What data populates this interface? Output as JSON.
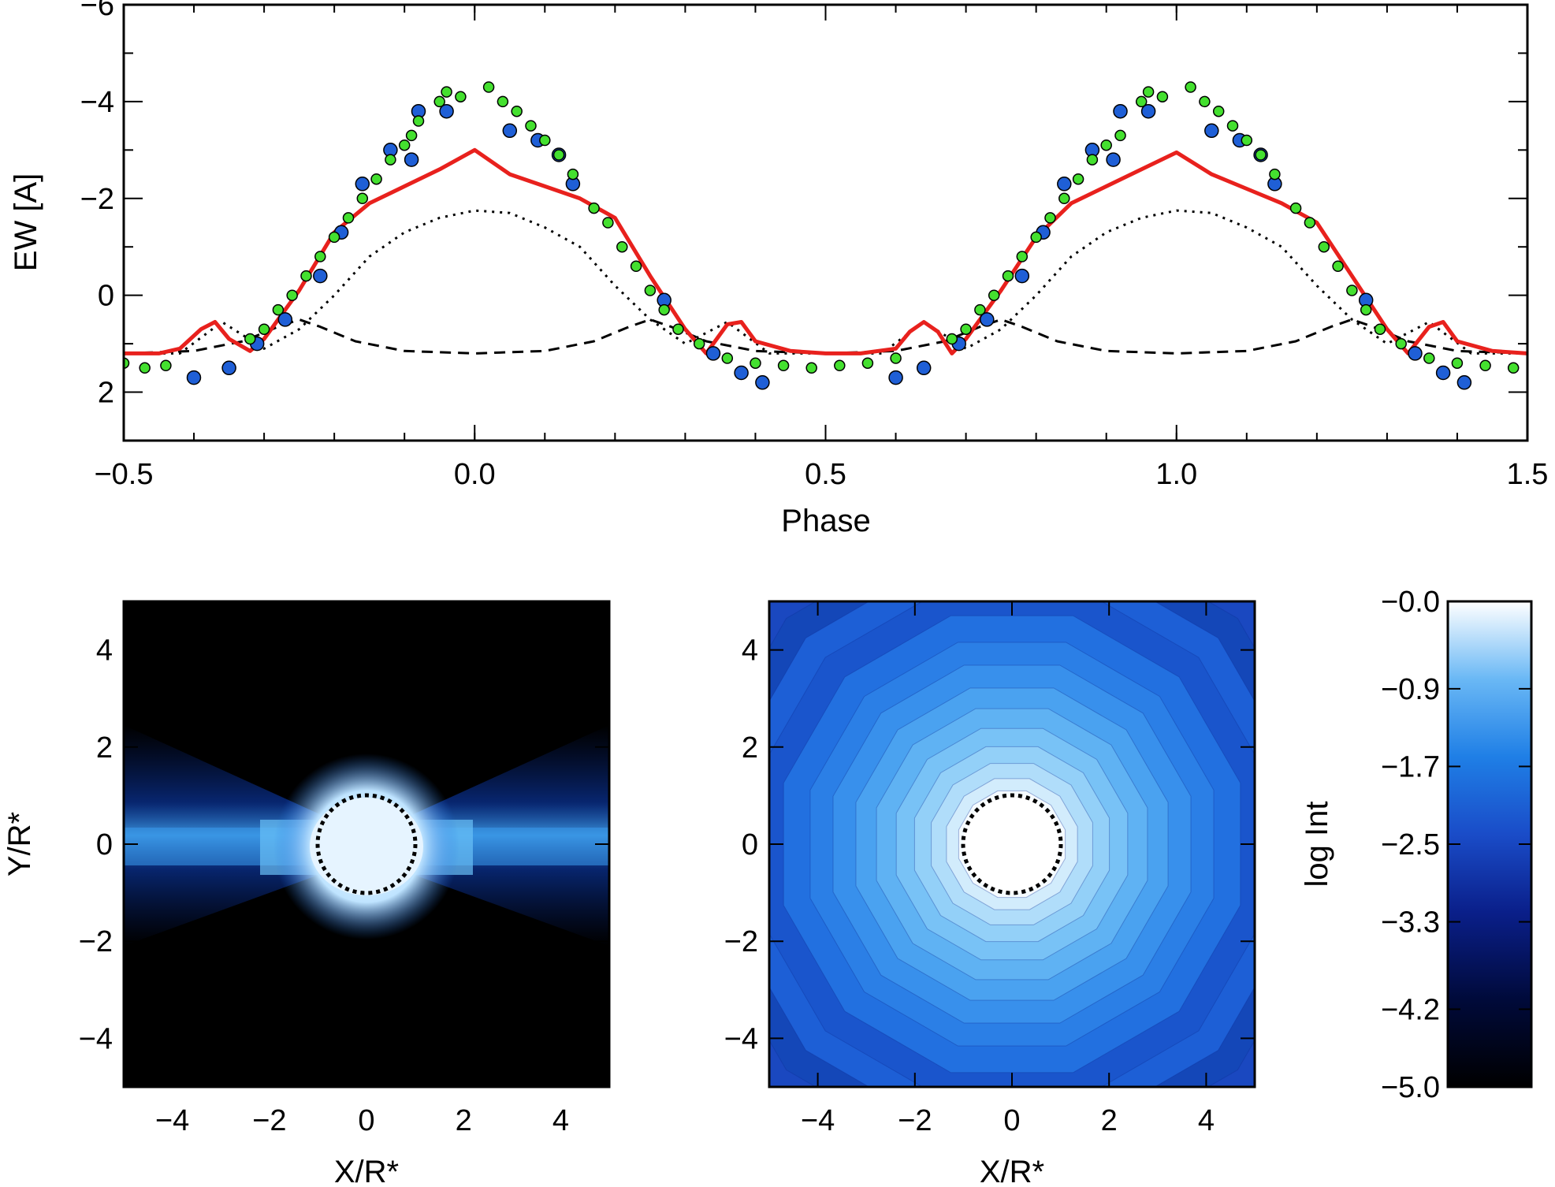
{
  "chart_data": [
    {
      "type": "scatter",
      "xlabel": "Phase",
      "ylabel": "EW [A]",
      "xlim": [
        -0.5,
        1.5
      ],
      "ylim": [
        3,
        -6
      ],
      "xticks": [
        "−0.5",
        "0.0",
        "0.5",
        "1.0",
        "1.5"
      ],
      "yticks": [
        "−6",
        "−4",
        "−2",
        "0",
        "2"
      ],
      "colors": {
        "model_total": "#e8211d",
        "obs_green": "#44e02f",
        "obs_blue": "#1f5fd6"
      },
      "series": [
        {
          "name": "model total (solid red)",
          "x": [
            -0.5,
            -0.45,
            -0.42,
            -0.39,
            -0.37,
            -0.35,
            -0.32,
            -0.3,
            -0.25,
            -0.2,
            -0.15,
            -0.1,
            -0.05,
            0.0,
            0.05,
            0.1,
            0.15,
            0.2,
            0.25,
            0.3,
            0.33,
            0.36,
            0.38,
            0.4,
            0.45,
            0.5,
            0.55,
            0.6,
            0.62,
            0.64,
            0.66,
            0.68,
            0.7,
            0.75,
            0.8,
            0.85,
            0.9,
            0.95,
            1.0,
            1.05,
            1.1,
            1.15,
            1.2,
            1.25,
            1.3,
            1.33,
            1.36,
            1.38,
            1.4,
            1.45,
            1.5
          ],
          "y": [
            1.2,
            1.2,
            1.1,
            0.7,
            0.55,
            0.9,
            1.15,
            0.9,
            -0.1,
            -1.3,
            -1.9,
            -2.25,
            -2.6,
            -3.0,
            -2.5,
            -2.25,
            -2.0,
            -1.6,
            -0.4,
            0.7,
            1.2,
            0.6,
            0.55,
            0.95,
            1.15,
            1.2,
            1.2,
            1.1,
            0.75,
            0.55,
            0.75,
            1.2,
            0.9,
            -0.1,
            -1.2,
            -1.9,
            -2.25,
            -2.6,
            -2.95,
            -2.5,
            -2.2,
            -1.9,
            -1.5,
            -0.4,
            0.7,
            1.2,
            0.65,
            0.55,
            0.95,
            1.15,
            1.2
          ]
        },
        {
          "name": "model component (dotted)",
          "x": [
            -0.5,
            -0.42,
            -0.36,
            -0.3,
            -0.25,
            -0.2,
            -0.15,
            -0.1,
            -0.05,
            0.0,
            0.05,
            0.1,
            0.15,
            0.2,
            0.25,
            0.3,
            0.36,
            0.42,
            0.5,
            0.58,
            0.64,
            0.7,
            0.75,
            0.8,
            0.85,
            0.9,
            0.95,
            1.0,
            1.05,
            1.1,
            1.15,
            1.2,
            1.25,
            1.3,
            1.36,
            1.42,
            1.5
          ],
          "y": [
            1.2,
            1.2,
            0.55,
            1.1,
            0.7,
            0.0,
            -0.8,
            -1.3,
            -1.6,
            -1.75,
            -1.7,
            -1.4,
            -1.0,
            -0.2,
            0.5,
            1.0,
            0.55,
            1.2,
            1.2,
            1.2,
            0.55,
            1.1,
            0.7,
            0.0,
            -0.8,
            -1.3,
            -1.6,
            -1.75,
            -1.7,
            -1.4,
            -1.0,
            -0.2,
            0.5,
            1.0,
            0.55,
            1.2,
            1.2
          ]
        },
        {
          "name": "model component (dashed)",
          "x": [
            -0.5,
            -0.4,
            -0.33,
            -0.28,
            -0.25,
            -0.22,
            -0.17,
            -0.1,
            0.0,
            0.1,
            0.17,
            0.22,
            0.25,
            0.28,
            0.33,
            0.4,
            0.5,
            0.6,
            0.67,
            0.72,
            0.75,
            0.78,
            0.83,
            0.9,
            1.0,
            1.1,
            1.17,
            1.22,
            1.25,
            1.28,
            1.33,
            1.4,
            1.5
          ],
          "y": [
            1.2,
            1.15,
            0.95,
            0.65,
            0.5,
            0.65,
            0.95,
            1.15,
            1.2,
            1.15,
            0.95,
            0.65,
            0.5,
            0.65,
            0.95,
            1.15,
            1.2,
            1.15,
            0.95,
            0.65,
            0.5,
            0.65,
            0.95,
            1.15,
            1.2,
            1.15,
            0.95,
            0.65,
            0.5,
            0.65,
            0.95,
            1.15,
            1.2
          ]
        },
        {
          "name": "observations (green)",
          "x": [
            -0.5,
            -0.47,
            -0.44,
            -0.32,
            -0.3,
            -0.28,
            -0.26,
            -0.24,
            -0.22,
            -0.2,
            -0.18,
            -0.16,
            -0.14,
            -0.12,
            -0.1,
            -0.09,
            -0.08,
            -0.05,
            -0.04,
            -0.02,
            0.02,
            0.04,
            0.06,
            0.08,
            0.1,
            0.12,
            0.14,
            0.17,
            0.19,
            0.21,
            0.23,
            0.25,
            0.27,
            0.29,
            0.32,
            0.36,
            0.4,
            0.44,
            0.48,
            0.52,
            0.56,
            0.6,
            0.68,
            0.7,
            0.72,
            0.74,
            0.76,
            0.78,
            0.8,
            0.82,
            0.84,
            0.86,
            0.88,
            0.9,
            0.92,
            0.95,
            0.96,
            0.98,
            1.02,
            1.04,
            1.06,
            1.08,
            1.1,
            1.12,
            1.14,
            1.17,
            1.19,
            1.21,
            1.23,
            1.25,
            1.27,
            1.29,
            1.32,
            1.36,
            1.4,
            1.44,
            1.48
          ],
          "y": [
            1.4,
            1.5,
            1.45,
            0.9,
            0.7,
            0.3,
            0.0,
            -0.4,
            -0.8,
            -1.2,
            -1.6,
            -2.0,
            -2.4,
            -2.8,
            -3.1,
            -3.3,
            -3.6,
            -4.0,
            -4.2,
            -4.1,
            -4.3,
            -4.0,
            -3.8,
            -3.5,
            -3.2,
            -2.9,
            -2.5,
            -1.8,
            -1.5,
            -1.0,
            -0.6,
            -0.1,
            0.3,
            0.7,
            1.0,
            1.3,
            1.4,
            1.45,
            1.5,
            1.45,
            1.4,
            1.3,
            0.9,
            0.7,
            0.3,
            0.0,
            -0.4,
            -0.8,
            -1.2,
            -1.6,
            -2.0,
            -2.4,
            -2.8,
            -3.1,
            -3.3,
            -4.0,
            -4.2,
            -4.1,
            -4.3,
            -4.0,
            -3.8,
            -3.5,
            -3.2,
            -2.9,
            -2.5,
            -1.8,
            -1.5,
            -1.0,
            -0.6,
            -0.1,
            0.3,
            0.7,
            1.0,
            1.3,
            1.4,
            1.45,
            1.5
          ]
        },
        {
          "name": "observations (blue)",
          "x": [
            -0.4,
            -0.35,
            -0.31,
            -0.27,
            -0.22,
            -0.19,
            -0.16,
            -0.12,
            -0.09,
            -0.08,
            -0.04,
            0.05,
            0.09,
            0.12,
            0.14,
            0.27,
            0.34,
            0.38,
            0.41,
            0.6,
            0.64,
            0.69,
            0.73,
            0.78,
            0.81,
            0.84,
            0.88,
            0.91,
            0.92,
            0.96,
            1.05,
            1.09,
            1.12,
            1.14,
            1.27,
            1.34,
            1.38,
            1.41
          ],
          "y": [
            1.7,
            1.5,
            1.0,
            0.5,
            -0.4,
            -1.3,
            -2.3,
            -3.0,
            -2.8,
            -3.8,
            -3.8,
            -3.4,
            -3.2,
            -2.9,
            -2.3,
            0.1,
            1.2,
            1.6,
            1.8,
            1.7,
            1.5,
            1.0,
            0.5,
            -0.4,
            -1.3,
            -2.3,
            -3.0,
            -2.8,
            -3.8,
            -3.8,
            -3.4,
            -3.2,
            -2.9,
            -2.3,
            0.1,
            1.2,
            1.6,
            1.8
          ]
        }
      ]
    },
    {
      "type": "heatmap",
      "xlabel": "X/R*",
      "ylabel": "Y/R*",
      "xlim": [
        -5,
        5
      ],
      "ylim": [
        -5,
        5
      ],
      "xticks": [
        "−4",
        "−2",
        "0",
        "2",
        "4"
      ],
      "yticks": [
        "−4",
        "−2",
        "0",
        "2",
        "4"
      ],
      "stellar_radius": 1,
      "description_value": "equatorial disk-like emission"
    },
    {
      "type": "heatmap",
      "xlabel": "X/R*",
      "ylabel": "",
      "xlim": [
        -5,
        5
      ],
      "ylim": [
        -5,
        5
      ],
      "xticks": [
        "−4",
        "−2",
        "0",
        "2",
        "4"
      ],
      "yticks": [
        "−4",
        "−2",
        "0",
        "2",
        "4"
      ],
      "stellar_radius": 1,
      "polygon_sides": 12
    }
  ],
  "colorbar": {
    "label": "log Int",
    "range": [
      -5.0,
      0.0
    ],
    "ticks": [
      "−0.0",
      "−0.9",
      "−1.7",
      "−2.5",
      "−3.3",
      "−4.2",
      "−5.0"
    ],
    "tick_values": [
      0.0,
      -0.9,
      -1.7,
      -2.5,
      -3.3,
      -4.2,
      -5.0
    ],
    "colors": [
      "#000000",
      "#000a3a",
      "#0a1f8a",
      "#1a4cc8",
      "#1f7fe6",
      "#6ab8f5",
      "#ffffff"
    ]
  }
}
